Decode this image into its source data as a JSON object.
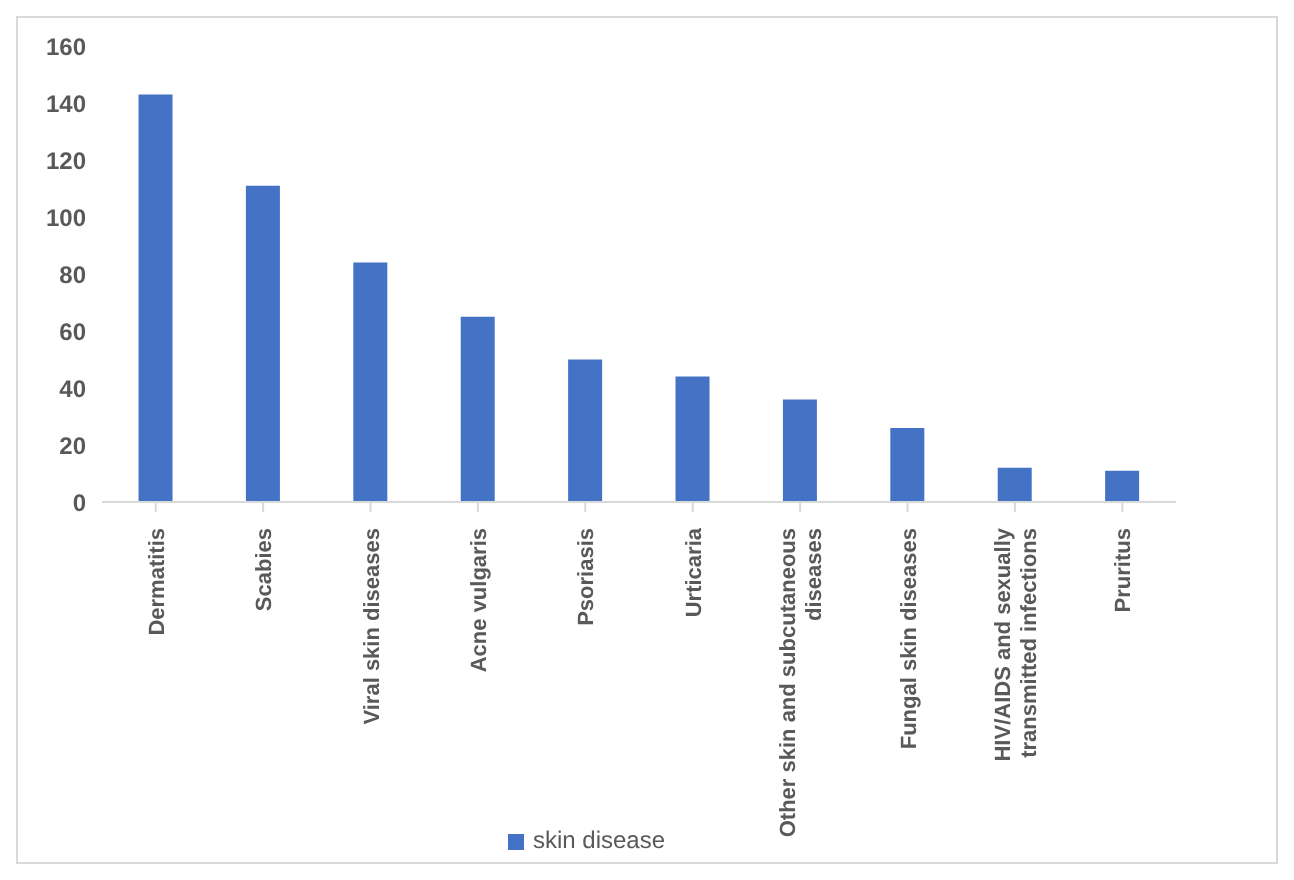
{
  "chart_data": {
    "type": "bar",
    "categories": [
      "Dermatitis",
      "Scabies",
      "Viral skin diseases",
      "Acne vulgaris",
      "Psoriasis",
      "Urticaria",
      "Other skin and subcutaneous diseases",
      "Fungal skin diseases",
      "HIV/AIDS and sexually transmitted infections",
      "Pruritus"
    ],
    "series": [
      {
        "name": "skin disease",
        "color": "#4472c4",
        "values": [
          143,
          111,
          84,
          65,
          50,
          44,
          36,
          26,
          12,
          11
        ]
      }
    ],
    "ylim": [
      0,
      160
    ],
    "yticks": [
      0,
      20,
      40,
      60,
      80,
      100,
      120,
      140,
      160
    ],
    "grid": false,
    "legend": "bottom"
  }
}
